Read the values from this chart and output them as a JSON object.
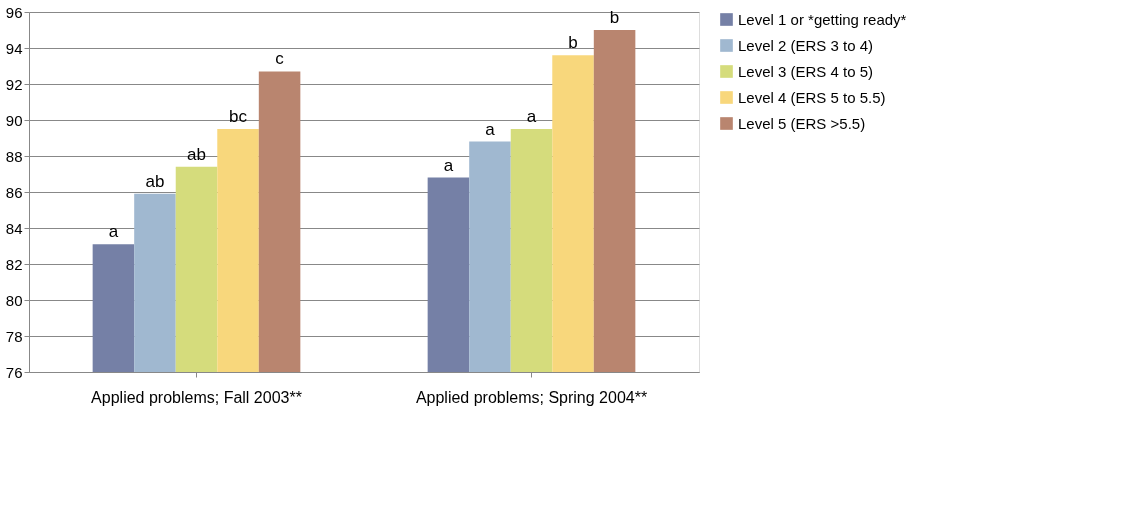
{
  "chart_data": {
    "type": "bar",
    "categories": [
      "Applied problems; Fall 2003**",
      "Applied problems; Spring 2004**"
    ],
    "series": [
      {
        "name": "Level 1 or *getting ready*",
        "color": "#7580a6",
        "values": [
          83.1,
          86.8
        ],
        "value_labels": [
          "a",
          "a"
        ]
      },
      {
        "name": "Level 2 (ERS 3 to 4)",
        "color": "#a0b8d0",
        "values": [
          85.9,
          88.8
        ],
        "value_labels": [
          "ab",
          "a"
        ]
      },
      {
        "name": "Level 3 (ERS 4 to 5)",
        "color": "#d5dc7c",
        "values": [
          87.4,
          89.5
        ],
        "value_labels": [
          "ab",
          "a"
        ]
      },
      {
        "name": "Level 4 (ERS 5 to 5.5)",
        "color": "#f8d77c",
        "values": [
          89.5,
          93.6
        ],
        "value_labels": [
          "bc",
          "b"
        ]
      },
      {
        "name": "Level 5 (ERS >5.5)",
        "color": "#b9856f",
        "values": [
          92.7,
          95.0
        ],
        "value_labels": [
          "c",
          "b"
        ]
      }
    ],
    "ylim": [
      76,
      96
    ],
    "yticks": [
      76,
      78,
      80,
      82,
      84,
      86,
      88,
      90,
      92,
      94,
      96
    ],
    "grid": "y",
    "legend": "right"
  }
}
